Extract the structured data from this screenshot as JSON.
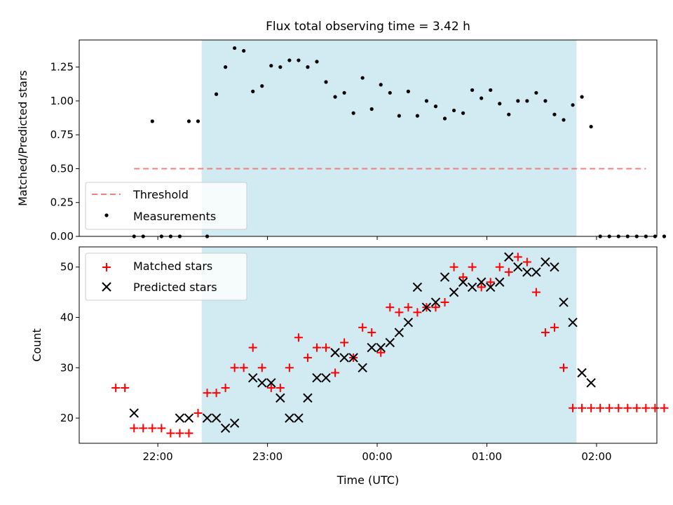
{
  "figure": {
    "title": "Flux total observing time = 3.42 h",
    "xlabel": "Time (UTC)",
    "x_ticks": [
      "22:00",
      "23:00",
      "00:00",
      "01:00",
      "02:00"
    ],
    "shaded_region": {
      "start": "22:24",
      "end": "01:49",
      "color": "#add8e6"
    }
  },
  "chart_data": [
    {
      "type": "scatter",
      "ylabel": "Matched/Predicted stars",
      "ylim": [
        0.0,
        1.45
      ],
      "yticks": [
        "0.00",
        "0.25",
        "0.50",
        "0.75",
        "1.00",
        "1.25"
      ],
      "legend": {
        "position": "lower-left",
        "entries": [
          "Threshold",
          "Measurements"
        ]
      },
      "threshold": {
        "name": "Threshold",
        "value": 0.5,
        "x_range": [
          "21:47",
          "02:27"
        ],
        "color": "#f08080"
      },
      "series": [
        {
          "name": "Measurements",
          "color": "#000000",
          "points": [
            [
              "21:47",
              0.0
            ],
            [
              "21:52",
              0.0
            ],
            [
              "21:57",
              0.85
            ],
            [
              "22:02",
              0.0
            ],
            [
              "22:07",
              0.0
            ],
            [
              "22:12",
              0.0
            ],
            [
              "22:17",
              0.85
            ],
            [
              "22:22",
              0.85
            ],
            [
              "22:27",
              0.0
            ],
            [
              "22:32",
              1.05
            ],
            [
              "22:37",
              1.25
            ],
            [
              "22:42",
              1.39
            ],
            [
              "22:47",
              1.37
            ],
            [
              "22:52",
              1.07
            ],
            [
              "22:57",
              1.11
            ],
            [
              "23:02",
              1.26
            ],
            [
              "23:07",
              1.25
            ],
            [
              "23:12",
              1.3
            ],
            [
              "23:17",
              1.3
            ],
            [
              "23:22",
              1.25
            ],
            [
              "23:27",
              1.29
            ],
            [
              "23:32",
              1.14
            ],
            [
              "23:37",
              1.03
            ],
            [
              "23:42",
              1.06
            ],
            [
              "23:47",
              0.91
            ],
            [
              "23:52",
              1.17
            ],
            [
              "23:57",
              0.94
            ],
            [
              "00:02",
              1.12
            ],
            [
              "00:07",
              1.06
            ],
            [
              "00:12",
              0.89
            ],
            [
              "00:17",
              1.07
            ],
            [
              "00:22",
              0.89
            ],
            [
              "00:27",
              1.0
            ],
            [
              "00:32",
              0.96
            ],
            [
              "00:37",
              0.87
            ],
            [
              "00:42",
              0.93
            ],
            [
              "00:47",
              0.91
            ],
            [
              "00:52",
              1.08
            ],
            [
              "00:57",
              1.02
            ],
            [
              "01:02",
              1.08
            ],
            [
              "01:07",
              0.98
            ],
            [
              "01:12",
              0.9
            ],
            [
              "01:17",
              1.0
            ],
            [
              "01:22",
              1.0
            ],
            [
              "01:27",
              1.06
            ],
            [
              "01:32",
              1.0
            ],
            [
              "01:37",
              0.9
            ],
            [
              "01:42",
              0.86
            ],
            [
              "01:47",
              0.97
            ],
            [
              "01:52",
              1.03
            ],
            [
              "01:57",
              0.81
            ],
            [
              "02:02",
              0.0
            ],
            [
              "02:07",
              0.0
            ],
            [
              "02:12",
              0.0
            ],
            [
              "02:17",
              0.0
            ],
            [
              "02:22",
              0.0
            ],
            [
              "02:27",
              0.0
            ],
            [
              "02:32",
              0.0
            ],
            [
              "02:37",
              0.0
            ]
          ]
        }
      ]
    },
    {
      "type": "scatter",
      "ylabel": "Count",
      "ylim": [
        15.0,
        54.0
      ],
      "yticks": [
        "20",
        "30",
        "40",
        "50"
      ],
      "legend": {
        "position": "top-left",
        "entries": [
          "Matched stars",
          "Predicted stars"
        ]
      },
      "series": [
        {
          "name": "Matched stars",
          "color": "#ff0000",
          "marker": "plus",
          "points": [
            [
              "21:37",
              26
            ],
            [
              "21:42",
              26
            ],
            [
              "21:47",
              18
            ],
            [
              "21:52",
              18
            ],
            [
              "21:57",
              18
            ],
            [
              "22:02",
              18
            ],
            [
              "22:07",
              17
            ],
            [
              "22:12",
              17
            ],
            [
              "22:17",
              17
            ],
            [
              "22:22",
              21
            ],
            [
              "22:27",
              25
            ],
            [
              "22:32",
              25
            ],
            [
              "22:37",
              26
            ],
            [
              "22:42",
              30
            ],
            [
              "22:47",
              30
            ],
            [
              "22:52",
              34
            ],
            [
              "22:57",
              30
            ],
            [
              "23:02",
              26
            ],
            [
              "23:07",
              26
            ],
            [
              "23:12",
              30
            ],
            [
              "23:17",
              36
            ],
            [
              "23:22",
              32
            ],
            [
              "23:27",
              34
            ],
            [
              "23:32",
              34
            ],
            [
              "23:37",
              29
            ],
            [
              "23:42",
              35
            ],
            [
              "23:47",
              32
            ],
            [
              "23:52",
              38
            ],
            [
              "23:57",
              37
            ],
            [
              "00:02",
              33
            ],
            [
              "00:07",
              42
            ],
            [
              "00:12",
              41
            ],
            [
              "00:17",
              42
            ],
            [
              "00:22",
              41
            ],
            [
              "00:27",
              42
            ],
            [
              "00:32",
              42
            ],
            [
              "00:37",
              43
            ],
            [
              "00:42",
              50
            ],
            [
              "00:47",
              48
            ],
            [
              "00:52",
              50
            ],
            [
              "00:57",
              46
            ],
            [
              "01:02",
              47
            ],
            [
              "01:07",
              50
            ],
            [
              "01:12",
              49
            ],
            [
              "01:17",
              52
            ],
            [
              "01:22",
              51
            ],
            [
              "01:27",
              45
            ],
            [
              "01:32",
              37
            ],
            [
              "01:37",
              38
            ],
            [
              "01:42",
              30
            ],
            [
              "01:47",
              22
            ],
            [
              "01:52",
              22
            ],
            [
              "01:57",
              22
            ],
            [
              "02:02",
              22
            ],
            [
              "02:07",
              22
            ],
            [
              "02:12",
              22
            ],
            [
              "02:17",
              22
            ],
            [
              "02:22",
              22
            ],
            [
              "02:27",
              22
            ],
            [
              "02:32",
              22
            ],
            [
              "02:37",
              22
            ]
          ]
        },
        {
          "name": "Predicted stars",
          "color": "#000000",
          "marker": "x",
          "points": [
            [
              "21:47",
              21
            ],
            [
              "22:12",
              20
            ],
            [
              "22:17",
              20
            ],
            [
              "22:27",
              20
            ],
            [
              "22:32",
              20
            ],
            [
              "22:37",
              18
            ],
            [
              "22:42",
              19
            ],
            [
              "22:52",
              28
            ],
            [
              "22:57",
              27
            ],
            [
              "23:02",
              27
            ],
            [
              "23:07",
              24
            ],
            [
              "23:12",
              20
            ],
            [
              "23:17",
              20
            ],
            [
              "23:22",
              24
            ],
            [
              "23:27",
              28
            ],
            [
              "23:32",
              28
            ],
            [
              "23:37",
              33
            ],
            [
              "23:42",
              32
            ],
            [
              "23:47",
              32
            ],
            [
              "23:52",
              30
            ],
            [
              "23:57",
              34
            ],
            [
              "00:02",
              34
            ],
            [
              "00:07",
              35
            ],
            [
              "00:12",
              37
            ],
            [
              "00:17",
              39
            ],
            [
              "00:22",
              46
            ],
            [
              "00:27",
              42
            ],
            [
              "00:32",
              43
            ],
            [
              "00:37",
              48
            ],
            [
              "00:42",
              45
            ],
            [
              "00:47",
              47
            ],
            [
              "00:52",
              46
            ],
            [
              "00:57",
              47
            ],
            [
              "01:02",
              46
            ],
            [
              "01:07",
              47
            ],
            [
              "01:12",
              52
            ],
            [
              "01:17",
              50
            ],
            [
              "01:22",
              49
            ],
            [
              "01:27",
              49
            ],
            [
              "01:32",
              51
            ],
            [
              "01:37",
              50
            ],
            [
              "01:42",
              43
            ],
            [
              "01:47",
              39
            ],
            [
              "01:52",
              29
            ],
            [
              "01:57",
              27
            ]
          ]
        }
      ]
    }
  ]
}
